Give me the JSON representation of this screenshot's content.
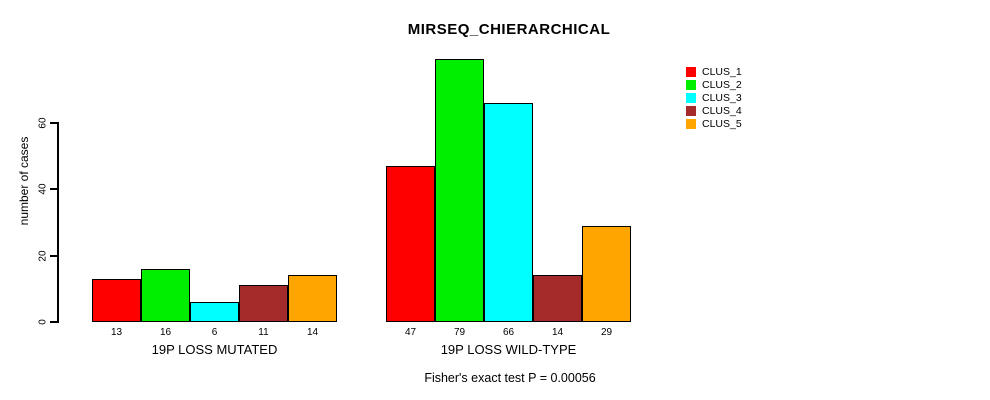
{
  "title": "MIRSEQ_CHIERARCHICAL",
  "footer": "Fisher's exact test P = 0.00056",
  "chart_data": {
    "type": "bar",
    "title": "MIRSEQ_CHIERARCHICAL",
    "xlabel": "",
    "ylabel": "number of cases",
    "yticks": [
      0,
      20,
      40,
      60
    ],
    "ylim": [
      0,
      80
    ],
    "grid": false,
    "legend_position": "top-right",
    "categories": [
      "19P LOSS MUTATED",
      "19P LOSS WILD-TYPE"
    ],
    "series": [
      {
        "name": "CLUS_1",
        "color": "#ff0000",
        "values": [
          13,
          47
        ]
      },
      {
        "name": "CLUS_2",
        "color": "#00ee00",
        "values": [
          16,
          79
        ]
      },
      {
        "name": "CLUS_3",
        "color": "#00ffff",
        "values": [
          6,
          66
        ]
      },
      {
        "name": "CLUS_4",
        "color": "#a52a2a",
        "values": [
          11,
          14
        ]
      },
      {
        "name": "CLUS_5",
        "color": "#ffa500",
        "values": [
          14,
          29
        ]
      }
    ],
    "bar_value_labels": [
      [
        13,
        16,
        6,
        11,
        14
      ],
      [
        47,
        79,
        66,
        14,
        29
      ]
    ],
    "annotation": "Fisher's exact test P = 0.00056"
  },
  "legend": {
    "items": [
      {
        "label": "CLUS_1",
        "color": "#ff0000"
      },
      {
        "label": "CLUS_2",
        "color": "#00ee00"
      },
      {
        "label": "CLUS_3",
        "color": "#00ffff"
      },
      {
        "label": "CLUS_4",
        "color": "#a52a2a"
      },
      {
        "label": "CLUS_5",
        "color": "#ffa500"
      }
    ]
  }
}
